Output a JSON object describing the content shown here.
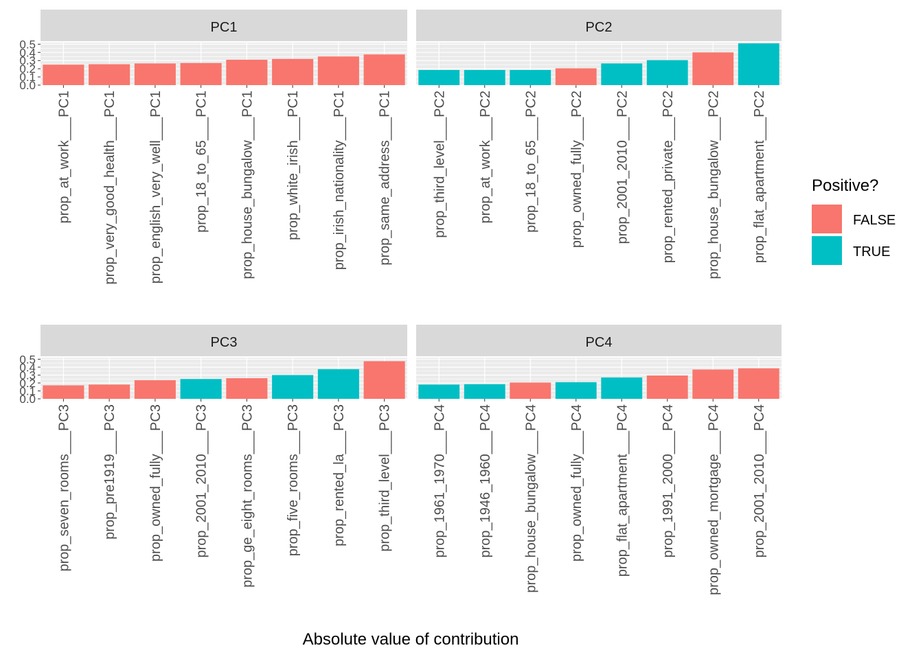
{
  "chart_data": {
    "type": "bar",
    "facets": [
      {
        "title": "PC1",
        "categories": [
          "prop_at_work___PC1",
          "prop_very_good_health___PC1",
          "prop_english_very_well___PC1",
          "prop_18_to_65___PC1",
          "prop_house_bungalow___PC1",
          "prop_white_irish___PC1",
          "prop_irish_nationality___PC1",
          "prop_same_address___PC1"
        ],
        "values": [
          0.25,
          0.255,
          0.265,
          0.27,
          0.31,
          0.32,
          0.35,
          0.375
        ],
        "positive": [
          "FALSE",
          "FALSE",
          "FALSE",
          "FALSE",
          "FALSE",
          "FALSE",
          "FALSE",
          "FALSE"
        ]
      },
      {
        "title": "PC2",
        "categories": [
          "prop_third_level___PC2",
          "prop_at_work___PC2",
          "prop_18_to_65___PC2",
          "prop_owned_fully___PC2",
          "prop_2001_2010___PC2",
          "prop_rented_private___PC2",
          "prop_house_bungalow___PC2",
          "prop_flat_apartment___PC2"
        ],
        "values": [
          0.185,
          0.185,
          0.185,
          0.205,
          0.265,
          0.305,
          0.4,
          0.51
        ],
        "positive": [
          "TRUE",
          "TRUE",
          "TRUE",
          "FALSE",
          "TRUE",
          "TRUE",
          "FALSE",
          "TRUE"
        ]
      },
      {
        "title": "PC3",
        "categories": [
          "prop_seven_rooms___PC3",
          "prop_pre1919___PC3",
          "prop_owned_fully___PC3",
          "prop_2001_2010___PC3",
          "prop_ge_eight_rooms___PC3",
          "prop_five_rooms___PC3",
          "prop_rented_la___PC3",
          "prop_third_level___PC3"
        ],
        "values": [
          0.17,
          0.18,
          0.235,
          0.25,
          0.26,
          0.3,
          0.375,
          0.475
        ],
        "positive": [
          "FALSE",
          "FALSE",
          "FALSE",
          "TRUE",
          "FALSE",
          "TRUE",
          "TRUE",
          "FALSE"
        ]
      },
      {
        "title": "PC4",
        "categories": [
          "prop_1961_1970___PC4",
          "prop_1946_1960___PC4",
          "prop_house_bungalow___PC4",
          "prop_owned_fully___PC4",
          "prop_flat_apartment___PC4",
          "prop_1991_2000___PC4",
          "prop_owned_mortgage___PC4",
          "prop_2001_2010___PC4"
        ],
        "values": [
          0.18,
          0.185,
          0.205,
          0.21,
          0.27,
          0.295,
          0.37,
          0.385
        ],
        "positive": [
          "TRUE",
          "TRUE",
          "FALSE",
          "TRUE",
          "TRUE",
          "FALSE",
          "FALSE",
          "FALSE"
        ]
      }
    ],
    "y_ticks": [
      "0.0",
      "0.1",
      "0.2",
      "0.3",
      "0.4",
      "0.5"
    ],
    "ylim": [
      0,
      0.52
    ],
    "xlabel": "Absolute value of contribution",
    "ylabel": "",
    "legend": {
      "title": "Positive?",
      "position": "right",
      "items": [
        {
          "label": "FALSE",
          "color": "#F8766D"
        },
        {
          "label": "TRUE",
          "color": "#00BFC4"
        }
      ]
    },
    "colors": {
      "FALSE": "#F8766D",
      "TRUE": "#00BFC4"
    },
    "grid": true
  }
}
